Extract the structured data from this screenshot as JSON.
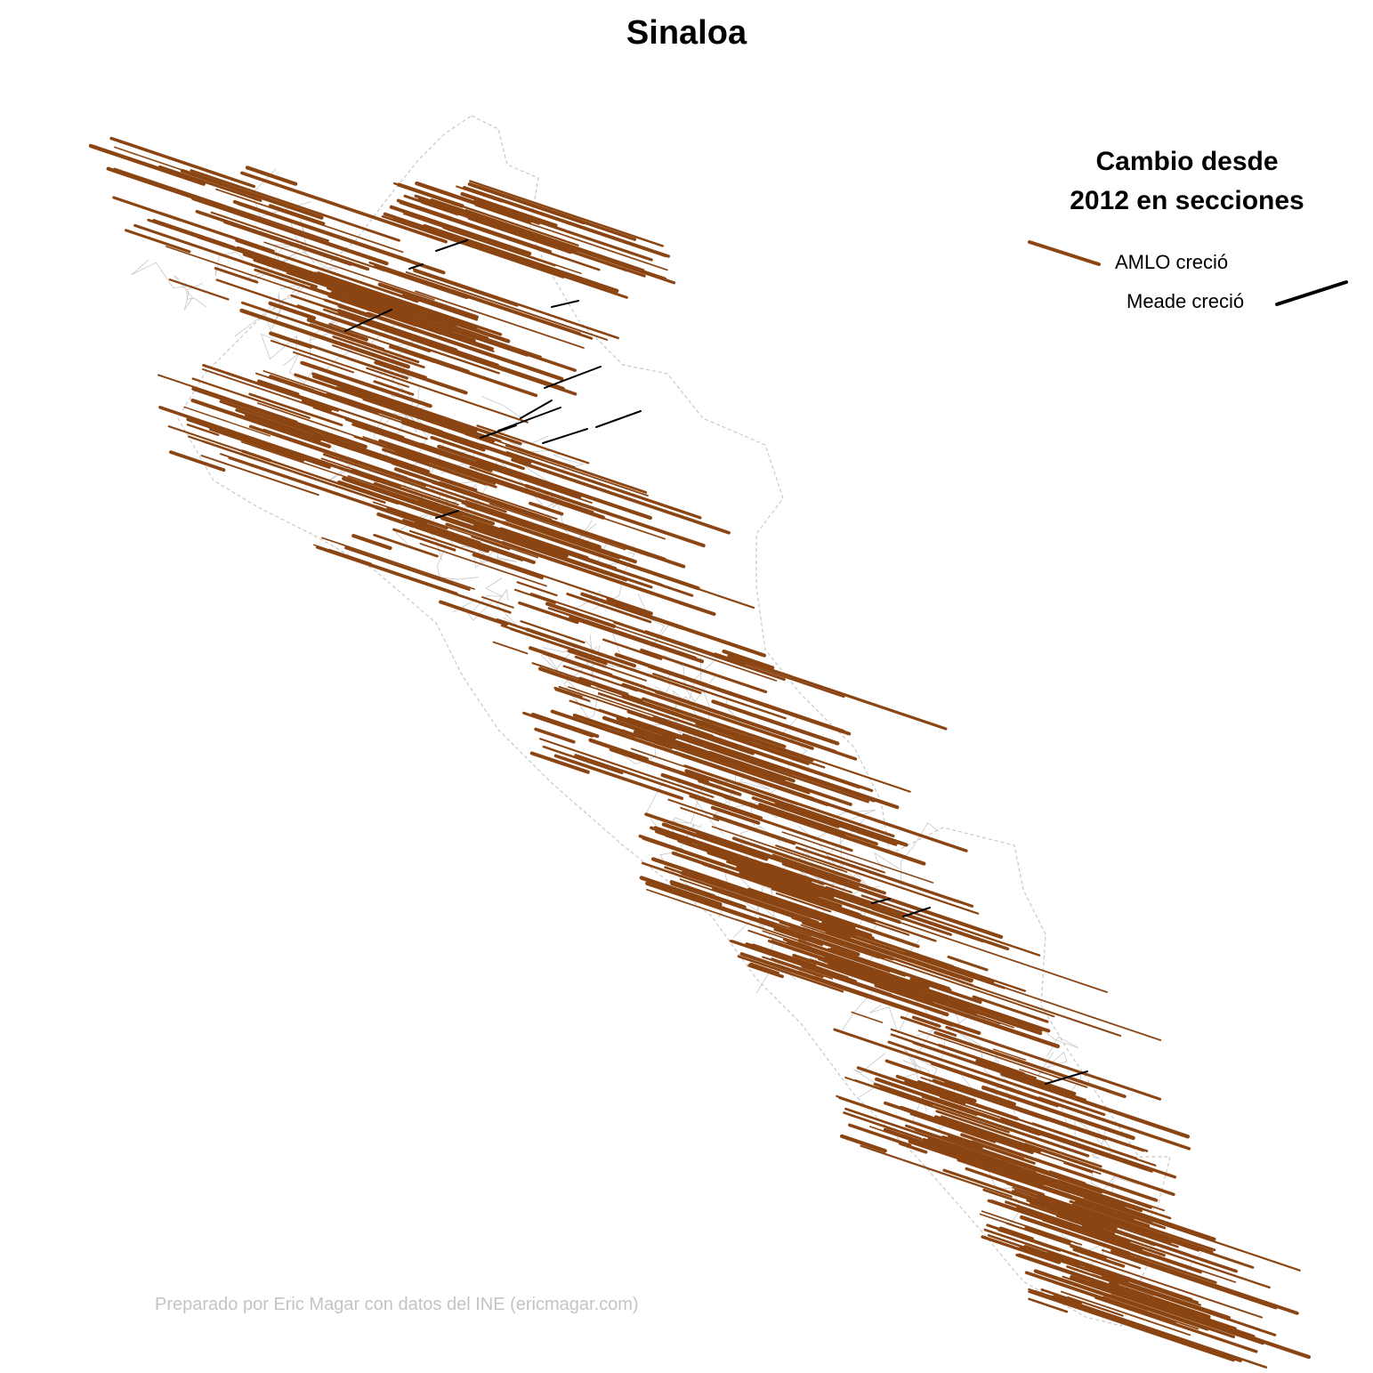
{
  "title": "Sinaloa",
  "legend": {
    "title_line1": "Cambio desde",
    "title_line2": "2012 en secciones",
    "amlo_label": "AMLO creció",
    "meade_label": "Meade creció"
  },
  "caption": "Preparado por Eric Magar con datos del INE (ericmagar.com)",
  "colors": {
    "amlo": "#8B4513",
    "meade": "#000000",
    "boundary": "#c8c8c8",
    "caption": "#c4c4c4"
  },
  "map": {
    "state": "Sinaloa",
    "units": "secciones electorales",
    "baseline_year": 2012
  }
}
